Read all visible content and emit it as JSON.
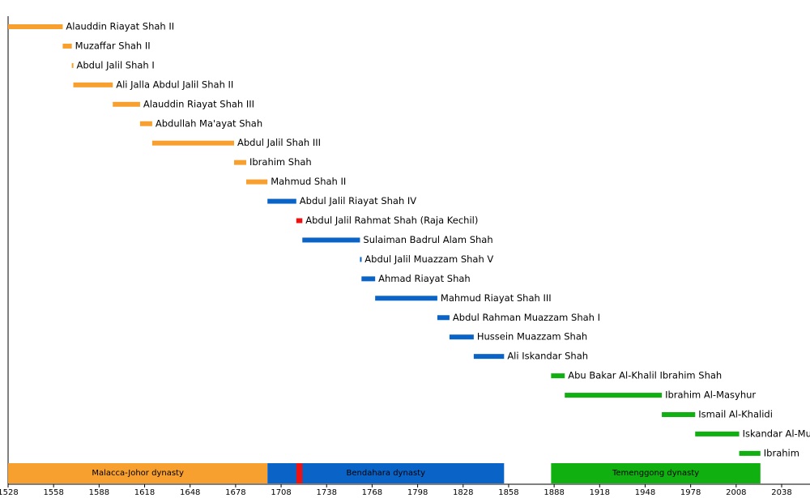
{
  "chart_data": {
    "type": "timeline",
    "xlim": [
      1528,
      2038
    ],
    "xticks": [
      1528,
      1558,
      1588,
      1618,
      1648,
      1678,
      1708,
      1738,
      1768,
      1798,
      1828,
      1858,
      1888,
      1918,
      1948,
      1978,
      2008,
      2038
    ],
    "items": [
      {
        "name": "Alauddin Riayat Shah II",
        "start": 1528,
        "end": 1564,
        "color": "#f7a030"
      },
      {
        "name": "Muzaffar Shah II",
        "start": 1564,
        "end": 1570,
        "color": "#f7a030"
      },
      {
        "name": "Abdul Jalil Shah I",
        "start": 1570,
        "end": 1571,
        "color": "#f7a030"
      },
      {
        "name": "Ali Jalla Abdul Jalil Shah II",
        "start": 1571,
        "end": 1597,
        "color": "#f7a030"
      },
      {
        "name": "Alauddin Riayat Shah III",
        "start": 1597,
        "end": 1615,
        "color": "#f7a030"
      },
      {
        "name": "Abdullah Ma'ayat Shah",
        "start": 1615,
        "end": 1623,
        "color": "#f7a030"
      },
      {
        "name": "Abdul Jalil Shah III",
        "start": 1623,
        "end": 1677,
        "color": "#f7a030"
      },
      {
        "name": "Ibrahim Shah",
        "start": 1677,
        "end": 1685,
        "color": "#f7a030"
      },
      {
        "name": "Mahmud Shah II",
        "start": 1685,
        "end": 1699,
        "color": "#f7a030"
      },
      {
        "name": "Abdul Jalil Riayat Shah IV",
        "start": 1699,
        "end": 1718,
        "color": "#0a64c8"
      },
      {
        "name": "Abdul Jalil Rahmat Shah (Raja Kechil)",
        "start": 1718,
        "end": 1722,
        "color": "#ee1111"
      },
      {
        "name": "Sulaiman Badrul Alam Shah",
        "start": 1722,
        "end": 1760,
        "color": "#0a64c8"
      },
      {
        "name": "Abdul Jalil Muazzam Shah V",
        "start": 1760,
        "end": 1761,
        "color": "#0a64c8"
      },
      {
        "name": "Ahmad Riayat Shah",
        "start": 1761,
        "end": 1770,
        "color": "#0a64c8"
      },
      {
        "name": "Mahmud Riayat Shah III",
        "start": 1770,
        "end": 1811,
        "color": "#0a64c8"
      },
      {
        "name": "Abdul Rahman Muazzam Shah I",
        "start": 1811,
        "end": 1819,
        "color": "#0a64c8"
      },
      {
        "name": "Hussein Muazzam Shah",
        "start": 1819,
        "end": 1835,
        "color": "#0a64c8"
      },
      {
        "name": "Ali Iskandar Shah",
        "start": 1835,
        "end": 1855,
        "color": "#0a64c8"
      },
      {
        "name": "Abu Bakar Al-Khalil Ibrahim Shah",
        "start": 1886,
        "end": 1895,
        "color": "#10b010"
      },
      {
        "name": "Ibrahim Al-Masyhur",
        "start": 1895,
        "end": 1959,
        "color": "#10b010"
      },
      {
        "name": "Ismail Al-Khalidi",
        "start": 1959,
        "end": 1981,
        "color": "#10b010"
      },
      {
        "name": "Iskandar Al-Mu",
        "start": 1981,
        "end": 2010,
        "color": "#10b010"
      },
      {
        "name": "Ibrahim",
        "start": 2010,
        "end": 2024,
        "color": "#10b010"
      }
    ],
    "bands": [
      {
        "name": "Malacca-Johor dynasty",
        "start": 1528,
        "end": 1699,
        "color": "#f7a030"
      },
      {
        "name": "Bendahara dynasty",
        "start": 1699,
        "end": 1855,
        "color": "#0a64c8"
      },
      {
        "start": 1718,
        "end": 1722,
        "color": "#ee1111"
      },
      {
        "name": "Temenggong dynasty",
        "start": 1886,
        "end": 2024,
        "color": "#10b010"
      }
    ]
  }
}
